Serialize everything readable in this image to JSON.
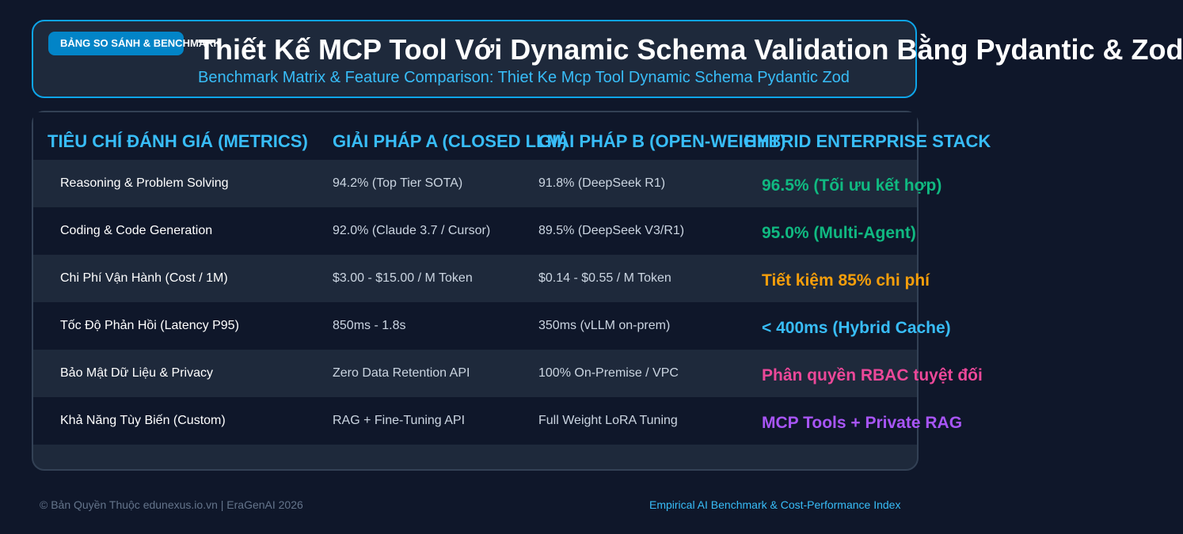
{
  "header": {
    "badge": "BẢNG SO SÁNH & BENCHMARK",
    "title": "Thiết Kế MCP Tool Với Dynamic Schema Validation Bằng Pydantic & Zod",
    "subtitle": "Benchmark Matrix & Feature Comparison: Thiet Ke Mcp Tool Dynamic Schema Pydantic Zod"
  },
  "table": {
    "columns": [
      "TIÊU CHÍ ĐÁNH GIÁ (METRICS)",
      "GIẢI PHÁP A (CLOSED LLM)",
      "GIẢI PHÁP B (OPEN-WEIGHT)",
      "HYBRID ENTERPRISE STACK"
    ],
    "rows": [
      {
        "icon": "",
        "metric": "Reasoning & Problem Solving",
        "a": "94.2% (Top Tier SOTA)",
        "b": "91.8% (DeepSeek R1)",
        "hybrid_icon": "",
        "hybrid": "96.5% (Tối ưu kết hợp)",
        "color": "#10b981"
      },
      {
        "icon": "",
        "metric": "Coding & Code Generation",
        "a": "92.0% (Claude 3.7 / Cursor)",
        "b": "89.5% (DeepSeek V3/R1)",
        "hybrid_icon": "",
        "hybrid": "95.0% (Multi-Agent)",
        "color": "#10b981"
      },
      {
        "icon": "",
        "metric": "Chi Phí Vận Hành (Cost / 1M)",
        "a": "$3.00 - $15.00 / M Token",
        "b": "$0.14 - $0.55 / M Token",
        "hybrid_icon": "",
        "hybrid": "Tiết kiệm 85% chi phí",
        "color": "#f59e0b"
      },
      {
        "icon": "",
        "metric": "Tốc Độ Phản Hồi (Latency P95)",
        "a": "850ms - 1.8s",
        "b": "350ms (vLLM on-prem)",
        "hybrid_icon": "",
        "hybrid": "< 400ms (Hybrid Cache)",
        "color": "#38bdf8"
      },
      {
        "icon": "",
        "metric": "Bảo Mật Dữ Liệu & Privacy",
        "a": "Zero Data Retention API",
        "b": "100% On-Premise / VPC",
        "hybrid_icon": "",
        "hybrid": "Phân quyền RBAC tuyệt đối",
        "color": "#ec4899"
      },
      {
        "icon": "",
        "metric": "Khả Năng Tùy Biến (Custom)",
        "a": "RAG + Fine-Tuning API",
        "b": "Full Weight LoRA Tuning",
        "hybrid_icon": "",
        "hybrid": "MCP Tools + Private RAG",
        "color": "#a855f7"
      }
    ]
  },
  "footer": {
    "copyright": "© Bản Quyền Thuộc edunexus.io.vn | EraGenAI 2026",
    "tagline": "Empirical AI Benchmark & Cost-Performance Index"
  }
}
